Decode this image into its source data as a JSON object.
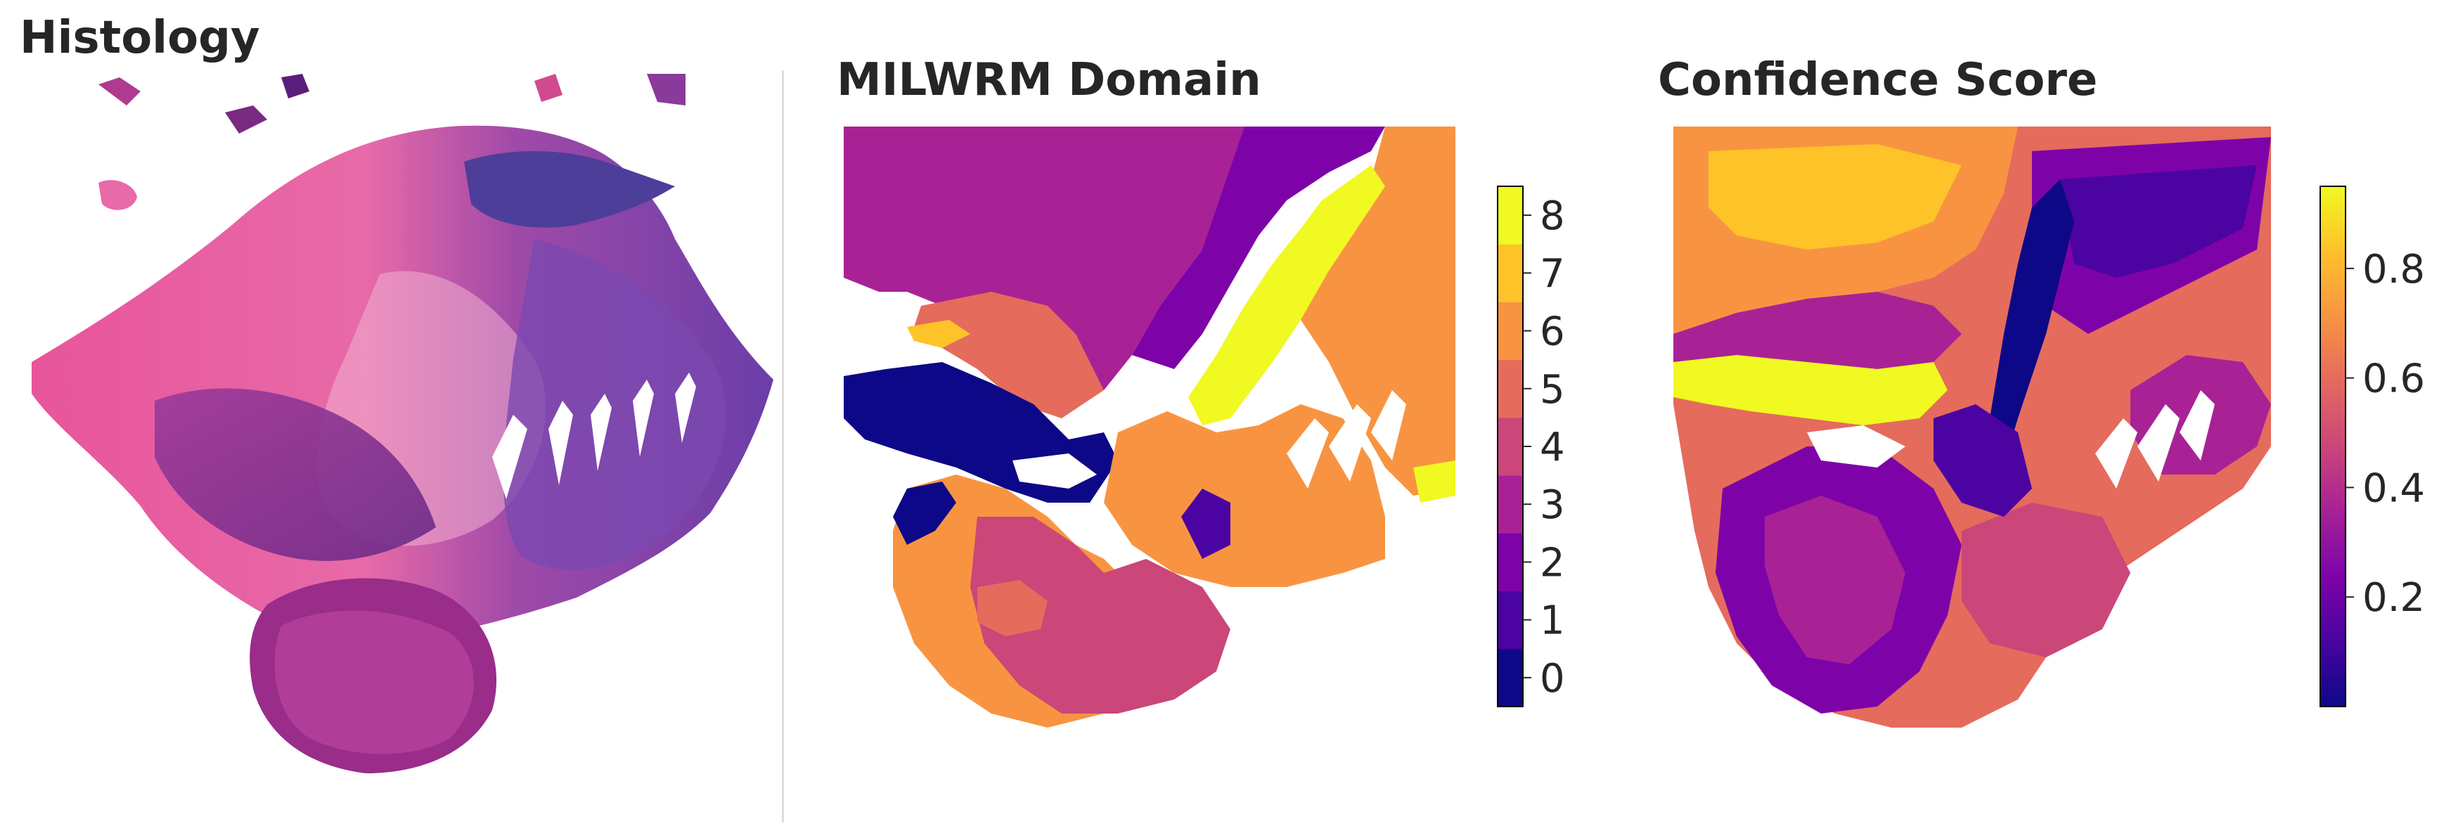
{
  "panels": {
    "histology": {
      "title": "Histology"
    },
    "domain": {
      "title": "MILWRM Domain"
    },
    "confidence": {
      "title": "Confidence Score"
    }
  },
  "chart_data": [
    {
      "type": "image",
      "title": "Histology",
      "content": "H&E stained tissue section",
      "grid": false
    },
    {
      "type": "heatmap",
      "title": "MILWRM Domain",
      "layout": "hexagonal spatial spot grid",
      "colorbar": {
        "kind": "discrete",
        "categories": [
          0,
          1,
          2,
          3,
          4,
          5,
          6,
          7,
          8
        ],
        "ticks": [
          "0",
          "1",
          "2",
          "3",
          "4",
          "5",
          "6",
          "7",
          "8"
        ],
        "colors": [
          "#0d0887",
          "#4b03a1",
          "#7d03a8",
          "#a82296",
          "#cb4679",
          "#e56b5d",
          "#f89441",
          "#fdc328",
          "#f0f921"
        ],
        "colormap": "plasma",
        "position": "right"
      },
      "grid": false
    },
    {
      "type": "heatmap",
      "title": "Confidence Score",
      "layout": "hexagonal spatial spot grid",
      "colorbar": {
        "kind": "continuous",
        "range": [
          0.0,
          0.95
        ],
        "ticks": [
          "0.2",
          "0.4",
          "0.6",
          "0.8"
        ],
        "tick_values": [
          0.2,
          0.4,
          0.6,
          0.8
        ],
        "colormap": "plasma",
        "position": "right"
      },
      "grid": false
    }
  ],
  "colors": {
    "divider": "#dcdcdc",
    "tissue_pink": "#e8559a",
    "tissue_purple": "#8b3a9e",
    "tissue_dark": "#5a1e7a"
  }
}
